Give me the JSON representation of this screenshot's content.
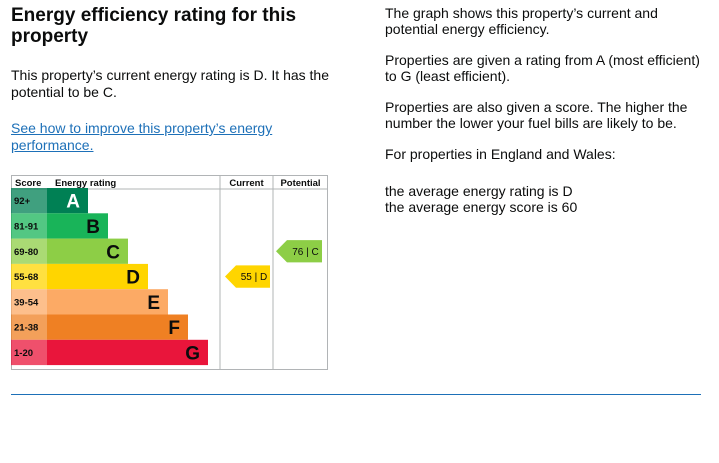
{
  "heading": "Energy efficiency rating for this property",
  "current_text": "This property’s current energy rating is D. It has the potential to be C.",
  "improve_link": "See how to improve this property’s energy performance.",
  "info": {
    "p1": "The graph shows this property’s current and potential energy efficiency.",
    "p2": "Properties are given a rating from A (most efficient) to G (least efficient).",
    "p3": "Properties are also given a score. The higher the number the lower your fuel bills are likely to be.",
    "p4": "For properties in England and Wales:",
    "avg_rating": "the average energy rating is D",
    "avg_score": "the average energy score is 60"
  },
  "chart_data": {
    "type": "table",
    "headers": {
      "score": "Score",
      "rating": "Energy rating",
      "current": "Current",
      "potential": "Potential"
    },
    "bands": [
      {
        "score": "92+",
        "letter": "A",
        "color": "#008054",
        "order": 1
      },
      {
        "score": "81-91",
        "letter": "B",
        "color": "#19b459",
        "order": 2
      },
      {
        "score": "69-80",
        "letter": "C",
        "color": "#8dce46",
        "order": 3
      },
      {
        "score": "55-68",
        "letter": "D",
        "color": "#ffd500",
        "order": 4
      },
      {
        "score": "39-54",
        "letter": "E",
        "color": "#fcaa65",
        "order": 5
      },
      {
        "score": "21-38",
        "letter": "F",
        "color": "#ef8023",
        "order": 6
      },
      {
        "score": "1-20",
        "letter": "G",
        "color": "#e9153b",
        "order": 7
      }
    ],
    "current": {
      "label": "55 | D",
      "score": 55,
      "band": "D"
    },
    "potential": {
      "label": "76 | C",
      "score": 76,
      "band": "C"
    }
  }
}
